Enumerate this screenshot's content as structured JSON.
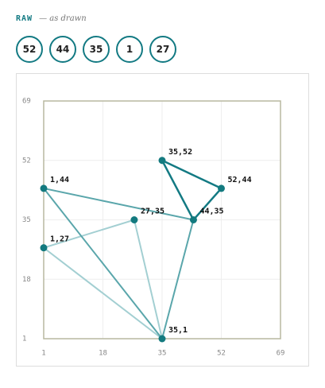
{
  "header": {
    "label": "RAW",
    "note": "— as drawn",
    "values": [
      52,
      44,
      35,
      1,
      27
    ]
  },
  "chart_data": {
    "type": "scatter",
    "x": [
      35,
      52,
      44,
      27,
      1,
      1,
      35
    ],
    "values": [
      52,
      44,
      35,
      35,
      44,
      27,
      1
    ],
    "value_labels": [
      "35,52",
      "52,44",
      "44,35",
      "27,35",
      "1,44",
      "1,27",
      "35,1"
    ],
    "color": "#137a7f",
    "series": [
      {
        "color": "#137a83",
        "x": [
          52,
          44,
          35
        ],
        "values": [
          44,
          35,
          52
        ]
      },
      {
        "color": "#5aa6ab",
        "x": [
          44,
          35,
          1
        ],
        "values": [
          35,
          1,
          44
        ]
      },
      {
        "color": "#a3cfd2",
        "x": [
          35,
          1,
          27
        ],
        "values": [
          1,
          27,
          35
        ]
      }
    ],
    "xlim": [
      1,
      69
    ],
    "ylim": [
      1,
      69
    ],
    "xticks": [
      1,
      18,
      35,
      52,
      69
    ],
    "yticks": [
      1,
      18,
      35,
      52,
      69
    ],
    "grid": true
  }
}
